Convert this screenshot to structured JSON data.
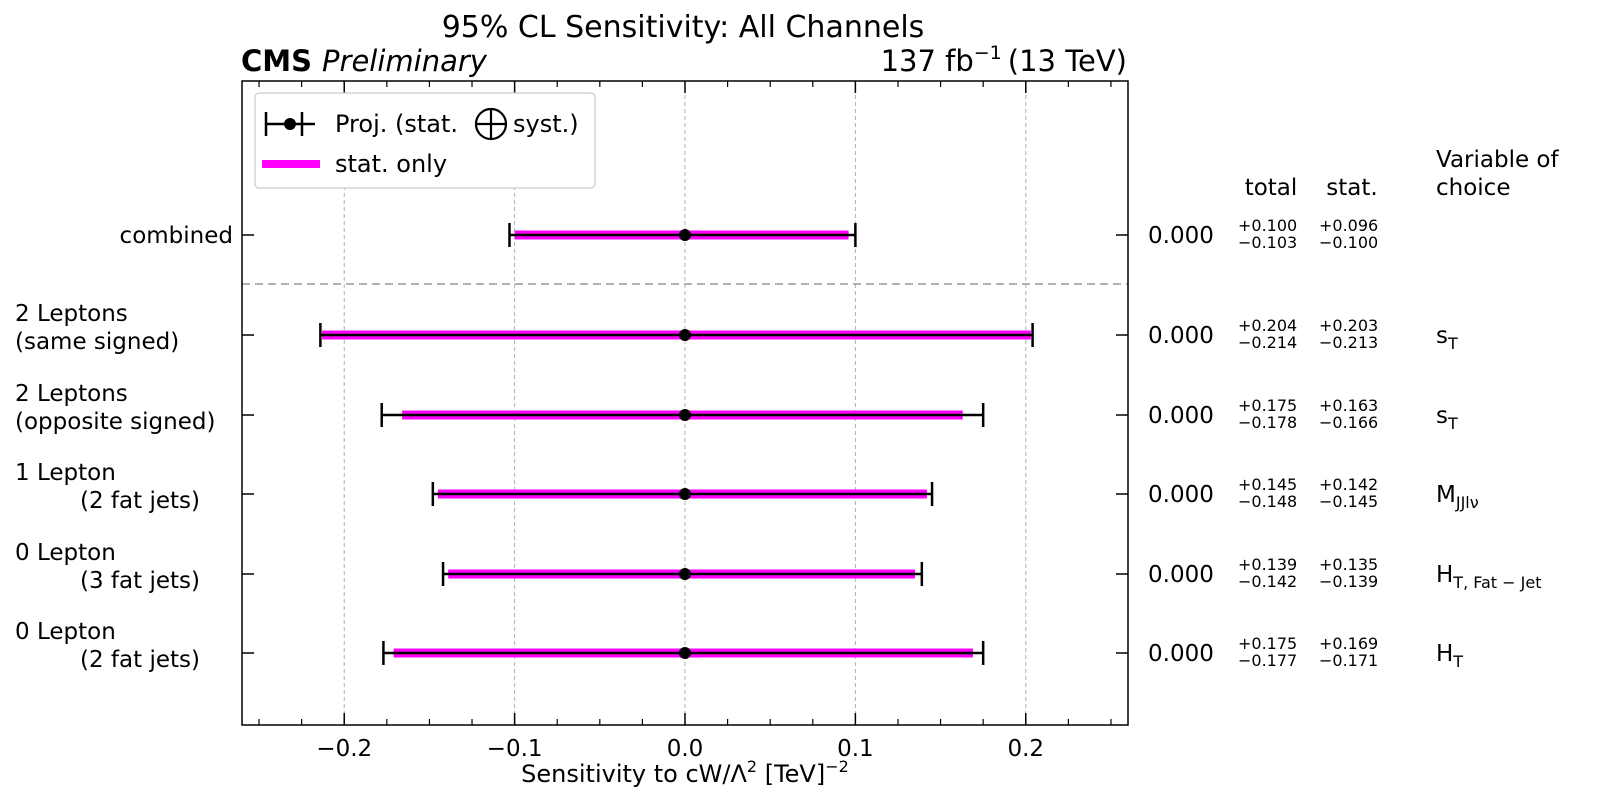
{
  "chart_data": {
    "type": "errorbar",
    "title": "95% CL Sensitivity: All Channels",
    "experiment": "CMS",
    "status": "Preliminary",
    "lumi_label": "137 fb",
    "lumi_exponent": "−1",
    "energy_label": "(13 TeV)",
    "xlabel_main": "Sensitivity to cW/Λ",
    "xlabel_sup1": "2",
    "xlabel_unit": " [TeV]",
    "xlabel_sup2": "−2",
    "xlim": [
      -0.26,
      0.26
    ],
    "x_ticks": [
      {
        "value": -0.2,
        "label": "−0.2"
      },
      {
        "value": -0.1,
        "label": "−0.1"
      },
      {
        "value": 0.0,
        "label": "0.0"
      },
      {
        "value": 0.1,
        "label": "0.1"
      },
      {
        "value": 0.2,
        "label": "0.2"
      }
    ],
    "grid": "x-dashed",
    "legend": {
      "placement": "top-left",
      "entries": [
        {
          "kind": "total",
          "text_before": "Proj. (stat.",
          "text_after": "syst.)",
          "color": "#000000"
        },
        {
          "kind": "stat",
          "text": "stat. only",
          "color": "#ff00ff"
        }
      ]
    },
    "table_headers": {
      "total": "total",
      "stat": "stat.",
      "variable_line1": "Variable of",
      "variable_line2": "choice"
    },
    "categories": [
      {
        "label_lines": [
          "combined"
        ],
        "indent": [
          false
        ],
        "value": 0.0,
        "value_text": "0.000",
        "total_up": 0.1,
        "total_down": 0.103,
        "stat_up": 0.096,
        "stat_down": 0.1,
        "total_up_text": "+0.100",
        "total_down_text": "−0.103",
        "stat_up_text": "+0.096",
        "stat_down_text": "−0.100",
        "variable": "",
        "variable_sub": ""
      },
      {
        "label_lines": [
          "2 Leptons",
          "(same signed)"
        ],
        "indent": [
          false,
          false
        ],
        "value": 0.0,
        "value_text": "0.000",
        "total_up": 0.204,
        "total_down": 0.214,
        "stat_up": 0.203,
        "stat_down": 0.213,
        "total_up_text": "+0.204",
        "total_down_text": "−0.214",
        "stat_up_text": "+0.203",
        "stat_down_text": "−0.213",
        "variable": "s",
        "variable_sub": "T"
      },
      {
        "label_lines": [
          "2 Leptons",
          "(opposite signed)"
        ],
        "indent": [
          false,
          false
        ],
        "value": 0.0,
        "value_text": "0.000",
        "total_up": 0.175,
        "total_down": 0.178,
        "stat_up": 0.163,
        "stat_down": 0.166,
        "total_up_text": "+0.175",
        "total_down_text": "−0.178",
        "stat_up_text": "+0.163",
        "stat_down_text": "−0.166",
        "variable": "s",
        "variable_sub": "T"
      },
      {
        "label_lines": [
          "1 Lepton",
          "(2 fat jets)"
        ],
        "indent": [
          false,
          true
        ],
        "value": 0.0,
        "value_text": "0.000",
        "total_up": 0.145,
        "total_down": 0.148,
        "stat_up": 0.142,
        "stat_down": 0.145,
        "total_up_text": "+0.145",
        "total_down_text": "−0.148",
        "stat_up_text": "+0.142",
        "stat_down_text": "−0.145",
        "variable": "M",
        "variable_sub": "JJlν"
      },
      {
        "label_lines": [
          "0 Lepton",
          "(3 fat jets)"
        ],
        "indent": [
          false,
          true
        ],
        "value": 0.0,
        "value_text": "0.000",
        "total_up": 0.139,
        "total_down": 0.142,
        "stat_up": 0.135,
        "stat_down": 0.139,
        "total_up_text": "+0.139",
        "total_down_text": "−0.142",
        "stat_up_text": "+0.135",
        "stat_down_text": "−0.139",
        "variable": "H",
        "variable_sub": "T, Fat − Jet"
      },
      {
        "label_lines": [
          "0 Lepton",
          "(2 fat jets)"
        ],
        "indent": [
          false,
          true
        ],
        "value": 0.0,
        "value_text": "0.000",
        "total_up": 0.175,
        "total_down": 0.177,
        "stat_up": 0.169,
        "stat_down": 0.171,
        "total_up_text": "+0.175",
        "total_down_text": "−0.177",
        "stat_up_text": "+0.169",
        "stat_down_text": "−0.171",
        "variable": "H",
        "variable_sub": "T"
      }
    ],
    "colors": {
      "total": "#000000",
      "stat": "#ff00ff",
      "grid": "#b0b0b0",
      "separator": "#999999"
    }
  }
}
